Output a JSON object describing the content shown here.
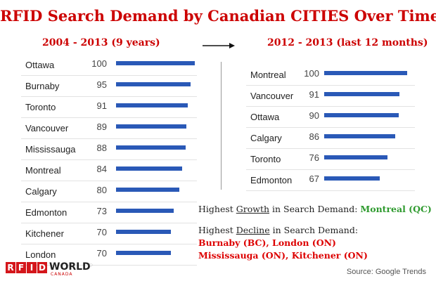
{
  "title": "RFID Search Demand by Canadian CITIES Over Time",
  "source": "Source: Google Trends",
  "logo": {
    "letters": [
      "R",
      "F",
      "I",
      "D"
    ],
    "word": "WORLD",
    "sub": "CANADA",
    "mark": "◌"
  },
  "arrow_icon": "right-arrow-icon",
  "colors": {
    "title": "#cc0000",
    "bar": "#2a59b7",
    "growth": "#2e9a2e",
    "decline": "#dd0000"
  },
  "notes": {
    "growth_prefix": "Highest ",
    "growth_word": "Growth",
    "growth_suffix": " in Search Demand: ",
    "growth_value": "Montreal (QC)",
    "decline_prefix": "Highest ",
    "decline_word": "Decline",
    "decline_suffix": " in Search Demand:",
    "decline_line1": "Burnaby (BC), London (ON)",
    "decline_line2": "Mississauga (ON), Kitchener (ON)"
  },
  "chart_data": [
    {
      "type": "bar",
      "orientation": "horizontal",
      "title": "2004 - 2013 (9 years)",
      "categories": [
        "Ottawa",
        "Burnaby",
        "Toronto",
        "Vancouver",
        "Mississauga",
        "Montreal",
        "Calgary",
        "Edmonton",
        "Kitchener",
        "London"
      ],
      "values": [
        100,
        95,
        91,
        89,
        88,
        84,
        80,
        73,
        70,
        70
      ],
      "xlim": [
        0,
        100
      ],
      "grid": false,
      "legend": "none"
    },
    {
      "type": "bar",
      "orientation": "horizontal",
      "title": "2012 - 2013 (last 12 months)",
      "categories": [
        "Montreal",
        "Vancouver",
        "Ottawa",
        "Calgary",
        "Toronto",
        "Edmonton"
      ],
      "values": [
        100,
        91,
        90,
        86,
        76,
        67
      ],
      "xlim": [
        0,
        100
      ],
      "grid": false,
      "legend": "none"
    }
  ]
}
